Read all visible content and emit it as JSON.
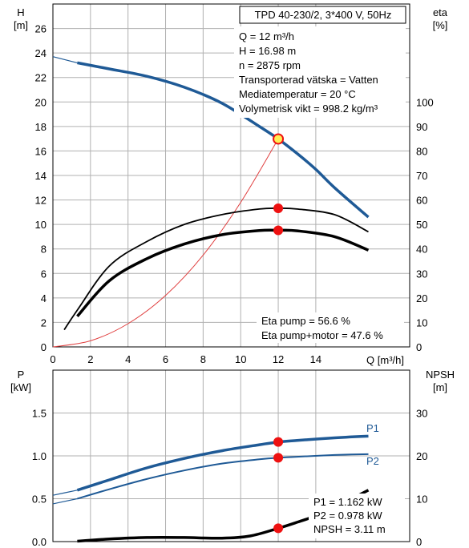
{
  "header": {
    "title": "TPD 40-230/2, 3*400 V, 50Hz"
  },
  "duty_point_info": [
    "Q = 12 m³/h",
    "H = 16.98 m",
    "n = 2875 rpm",
    "Transporterad vätska = Vatten",
    "Mediatemperatur = 20 °C",
    "Volymetrisk vikt = 998.2 kg/m³"
  ],
  "efficiency_info": [
    "Eta pump = 56.6 %",
    "Eta pump+motor = 47.6 %"
  ],
  "power_info": [
    "P1 = 1.162 kW",
    "P2 = 0.978 kW",
    "NPSH = 3.11 m"
  ],
  "axes": {
    "top_left_name": "H",
    "top_left_unit": "[m]",
    "top_right_name": "eta",
    "top_right_unit": "[%]",
    "x_label": "Q [m³/h]",
    "bottom_left_name": "P",
    "bottom_left_unit": "[kW]",
    "bottom_right_name": "NPSH",
    "bottom_right_unit": "[m]"
  },
  "colors": {
    "head": "#1f5a96",
    "power": "#1f5a96",
    "system": "#e04040",
    "eff": "#000000",
    "marker": "#ee1111",
    "marker_fill_duty": "#ffee55"
  },
  "chart_data": [
    {
      "type": "line",
      "title": "TPD 40-230/2, 3*400 V, 50Hz",
      "xlabel": "Q [m³/h]",
      "ylabel": "H [m]",
      "ylabel_right": "eta [%]",
      "xlim": [
        0,
        19
      ],
      "ylim": [
        0,
        28
      ],
      "ylim_right": [
        0,
        140
      ],
      "x_ticks": [
        "0",
        "2",
        "4",
        "6",
        "8",
        "10",
        "12",
        "14"
      ],
      "y_ticks": [
        "0",
        "2",
        "4",
        "6",
        "8",
        "10",
        "12",
        "14",
        "16",
        "18",
        "20",
        "22",
        "24",
        "26"
      ],
      "y_ticks_right": [
        "0",
        "10",
        "20",
        "30",
        "40",
        "50",
        "60",
        "70",
        "80",
        "90",
        "100"
      ],
      "grid": true,
      "series": [
        {
          "role": "head",
          "axis": "left",
          "x": [
            0,
            1.3,
            3,
            5,
            7,
            9,
            11,
            12,
            13,
            14,
            15,
            16.8
          ],
          "y": [
            23.7,
            23.2,
            22.7,
            22.1,
            21.2,
            19.9,
            18.0,
            16.98,
            15.8,
            14.5,
            13.0,
            10.6
          ]
        },
        {
          "role": "system_curve",
          "axis": "left",
          "x": [
            0,
            2,
            4,
            6,
            8,
            10,
            12
          ],
          "y": [
            0,
            0.5,
            1.9,
            4.2,
            7.5,
            11.8,
            16.98
          ]
        },
        {
          "role": "efficiency_pump",
          "axis": "right",
          "x": [
            0.6,
            1.3,
            3,
            5,
            7,
            9,
            11,
            12,
            13,
            15,
            16.8
          ],
          "y": [
            7,
            15,
            33,
            43,
            50,
            54,
            56.3,
            56.6,
            56.3,
            54,
            47
          ]
        },
        {
          "role": "efficiency_pump_motor",
          "axis": "right",
          "x": [
            1.3,
            3,
            5,
            7,
            9,
            11,
            12,
            13,
            15,
            16.8
          ],
          "y": [
            12.5,
            27,
            36,
            42,
            45.8,
            47.5,
            47.6,
            47.4,
            45,
            39.5
          ]
        }
      ],
      "points": [
        {
          "role": "duty_point",
          "x": 12,
          "y": 16.98,
          "axis": "left"
        },
        {
          "role": "eta_pump_point",
          "x": 12,
          "y": 56.6,
          "axis": "right"
        },
        {
          "role": "eta_total_point",
          "x": 12,
          "y": 47.6,
          "axis": "right"
        }
      ]
    },
    {
      "type": "line",
      "xlabel": "",
      "ylabel": "P [kW]",
      "ylabel_right": "NPSH [m]",
      "xlim": [
        0,
        19
      ],
      "ylim": [
        0,
        2
      ],
      "ylim_right": [
        0,
        40
      ],
      "y_ticks": [
        "0.0",
        "0.5",
        "1.0",
        "1.5"
      ],
      "y_ticks_right": [
        "0",
        "10",
        "20",
        "30"
      ],
      "grid": true,
      "series": [
        {
          "name": "P1",
          "axis": "left",
          "x": [
            0,
            1.3,
            3,
            5,
            7,
            9,
            11,
            12,
            13,
            15,
            16.8
          ],
          "y": [
            0.54,
            0.6,
            0.72,
            0.86,
            0.97,
            1.06,
            1.13,
            1.162,
            1.18,
            1.21,
            1.23
          ]
        },
        {
          "name": "P2",
          "axis": "left",
          "x": [
            0,
            1.3,
            3,
            5,
            7,
            9,
            11,
            12,
            13,
            15,
            16.8
          ],
          "y": [
            0.44,
            0.5,
            0.61,
            0.73,
            0.83,
            0.91,
            0.96,
            0.978,
            0.99,
            1.01,
            1.02
          ]
        },
        {
          "role": "npsh",
          "axis": "right",
          "x": [
            1.3,
            3,
            5,
            7,
            9,
            10.5,
            12,
            13,
            14,
            15,
            16.8
          ],
          "y": [
            0.1,
            0.6,
            0.95,
            0.95,
            0.8,
            1.3,
            3.11,
            4.5,
            6.0,
            8.0,
            12.0
          ]
        }
      ],
      "points": [
        {
          "role": "p1_point",
          "x": 12,
          "y": 1.162,
          "axis": "left"
        },
        {
          "role": "p2_point",
          "x": 12,
          "y": 0.978,
          "axis": "left"
        },
        {
          "role": "npsh_point",
          "x": 12,
          "y": 3.11,
          "axis": "right"
        }
      ]
    }
  ]
}
